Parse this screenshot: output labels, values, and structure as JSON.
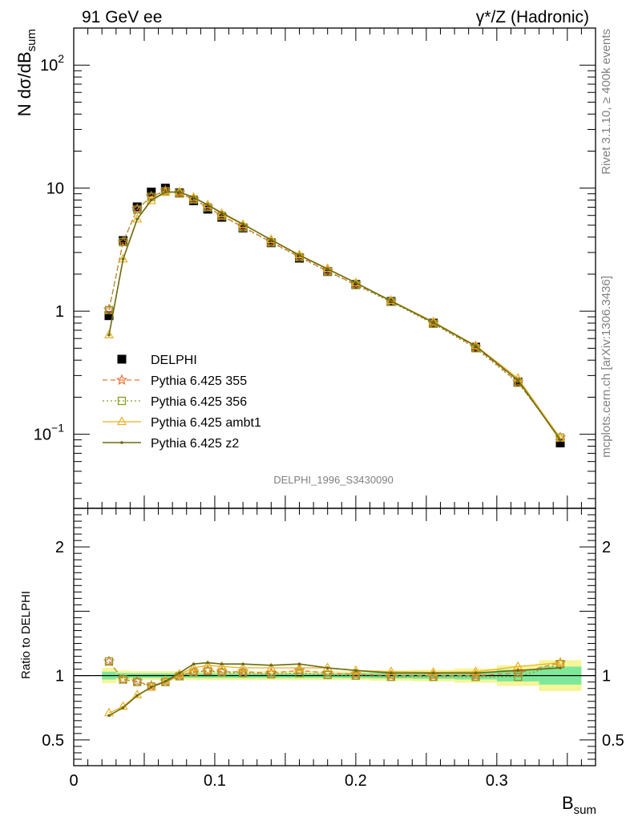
{
  "header": {
    "left": "91 GeV ee",
    "right": "γ*/Z (Hadronic)"
  },
  "side_labels": {
    "rivet": "Rivet 3.1.10, ≥ 400k events",
    "mcplots": "mcplots.cern.ch [arXiv:1306.3436]"
  },
  "watermark": "DELPHI_1996_S3430090",
  "colors": {
    "data": "#000000",
    "p355": "#e8743b",
    "p356": "#8a9a20",
    "ambt1": "#e8b020",
    "z2": "#6b6b10",
    "band_yellow": "#f5f59a",
    "band_green": "#7ee89a"
  },
  "chart_data": [
    {
      "type": "scatter",
      "panel": "main",
      "ylabel": "N dσ/dB",
      "ylabel_sub": "sum",
      "yscale": "log",
      "ylim": [
        0.025,
        200
      ],
      "xlim": [
        0,
        0.37
      ],
      "yticks": [
        {
          "value": 100,
          "base": "10",
          "exp": "2"
        },
        {
          "value": 10,
          "base": "10",
          "exp": ""
        },
        {
          "value": 1,
          "base": "1",
          "exp": ""
        },
        {
          "value": 0.1,
          "base": "10",
          "exp": "−1"
        }
      ],
      "legend_position": "middle-left",
      "series": [
        {
          "name": "DELPHI",
          "key": "data",
          "marker": "square",
          "x": [
            0.025,
            0.035,
            0.045,
            0.055,
            0.065,
            0.075,
            0.085,
            0.095,
            0.105,
            0.12,
            0.14,
            0.16,
            0.18,
            0.2,
            0.225,
            0.255,
            0.285,
            0.315,
            0.345
          ],
          "y": [
            0.92,
            3.75,
            7.05,
            9.3,
            10.0,
            9.15,
            7.9,
            6.75,
            5.8,
            4.75,
            3.6,
            2.7,
            2.1,
            1.65,
            1.2,
            0.8,
            0.51,
            0.265,
            0.085
          ]
        },
        {
          "name": "Pythia 6.425 355",
          "key": "p355",
          "marker": "star",
          "dash": "dashed",
          "x": [
            0.025,
            0.035,
            0.045,
            0.055,
            0.065,
            0.075,
            0.085,
            0.095,
            0.105,
            0.12,
            0.14,
            0.16,
            0.18,
            0.2,
            0.225,
            0.255,
            0.285,
            0.315,
            0.345
          ],
          "y": [
            1.03,
            3.65,
            6.75,
            8.55,
            9.5,
            9.1,
            8.1,
            7.0,
            5.95,
            4.85,
            3.65,
            2.78,
            2.12,
            1.65,
            1.21,
            0.8,
            0.51,
            0.265,
            0.094
          ]
        },
        {
          "name": "Pythia 6.425 356",
          "key": "p356",
          "marker": "open-square",
          "dash": "dotted",
          "x": [
            0.025,
            0.035,
            0.045,
            0.055,
            0.065,
            0.075,
            0.085,
            0.095,
            0.105,
            0.12,
            0.14,
            0.16,
            0.18,
            0.2,
            0.225,
            0.255,
            0.285,
            0.315,
            0.345
          ],
          "y": [
            1.02,
            3.65,
            6.7,
            8.5,
            9.45,
            9.05,
            8.1,
            7.0,
            5.95,
            4.8,
            3.62,
            2.75,
            2.1,
            1.63,
            1.19,
            0.79,
            0.5,
            0.262,
            0.094
          ]
        },
        {
          "name": "Pythia 6.425 ambt1",
          "key": "ambt1",
          "marker": "triangle",
          "dash": "solid",
          "x": [
            0.025,
            0.035,
            0.045,
            0.055,
            0.065,
            0.075,
            0.085,
            0.095,
            0.105,
            0.12,
            0.14,
            0.16,
            0.18,
            0.2,
            0.225,
            0.255,
            0.285,
            0.315,
            0.345
          ],
          "y": [
            0.64,
            2.65,
            5.6,
            7.9,
            9.2,
            9.3,
            8.4,
            7.3,
            6.2,
            5.05,
            3.82,
            2.87,
            2.22,
            1.7,
            1.22,
            0.82,
            0.525,
            0.285,
            0.093
          ]
        },
        {
          "name": "Pythia 6.425 z2",
          "key": "z2",
          "marker": "dot",
          "dash": "solid",
          "x": [
            0.025,
            0.035,
            0.045,
            0.055,
            0.065,
            0.075,
            0.085,
            0.095,
            0.105,
            0.12,
            0.14,
            0.16,
            0.18,
            0.2,
            0.225,
            0.255,
            0.285,
            0.315,
            0.345
          ],
          "y": [
            0.64,
            2.65,
            5.6,
            8.0,
            9.3,
            9.3,
            8.4,
            7.3,
            6.3,
            5.1,
            3.8,
            2.85,
            2.2,
            1.7,
            1.21,
            0.81,
            0.52,
            0.275,
            0.09
          ]
        }
      ]
    },
    {
      "type": "line",
      "panel": "ratio",
      "ylabel": "Ratio to DELPHI",
      "xlabel": "B",
      "xlabel_sub": "sum",
      "ylim": [
        0.3,
        2.3
      ],
      "xlim": [
        0,
        0.37
      ],
      "yticks": [
        0.5,
        1,
        2
      ],
      "ytick_labels": [
        "0.5",
        "1",
        "2"
      ],
      "xticks": [
        0,
        0.1,
        0.2,
        0.3
      ],
      "xtick_labels": [
        "0",
        "0.1",
        "0.2",
        "0.3"
      ],
      "bands": {
        "x_edges": [
          0.02,
          0.03,
          0.04,
          0.05,
          0.06,
          0.07,
          0.08,
          0.09,
          0.1,
          0.11,
          0.13,
          0.15,
          0.17,
          0.19,
          0.21,
          0.24,
          0.27,
          0.3,
          0.33,
          0.36
        ],
        "yellow_halfwidth": [
          0.06,
          0.04,
          0.035,
          0.035,
          0.035,
          0.035,
          0.035,
          0.035,
          0.035,
          0.035,
          0.035,
          0.035,
          0.035,
          0.035,
          0.04,
          0.045,
          0.055,
          0.08,
          0.12
        ],
        "green_halfwidth": [
          0.03,
          0.02,
          0.018,
          0.018,
          0.018,
          0.018,
          0.018,
          0.018,
          0.018,
          0.018,
          0.018,
          0.018,
          0.018,
          0.02,
          0.022,
          0.025,
          0.03,
          0.045,
          0.07
        ]
      },
      "series": [
        {
          "name": "Pythia 6.425 355",
          "key": "p355",
          "y": [
            1.11,
            0.97,
            0.955,
            0.92,
            0.955,
            1.0,
            1.03,
            1.04,
            1.03,
            1.03,
            1.02,
            1.04,
            1.02,
            1.01,
            1.0,
            1.0,
            1.0,
            1.02,
            1.1
          ]
        },
        {
          "name": "Pythia 6.425 356",
          "key": "p356",
          "y": [
            1.11,
            0.97,
            0.95,
            0.915,
            0.95,
            0.995,
            1.025,
            1.035,
            1.025,
            1.02,
            1.01,
            1.02,
            1.005,
            1.0,
            0.99,
            0.99,
            0.99,
            0.99,
            1.09
          ]
        },
        {
          "name": "Pythia 6.425 ambt1",
          "key": "ambt1",
          "y": [
            0.71,
            0.76,
            0.85,
            0.91,
            0.96,
            1.01,
            1.06,
            1.08,
            1.07,
            1.06,
            1.06,
            1.06,
            1.06,
            1.04,
            1.03,
            1.025,
            1.03,
            1.07,
            1.1
          ]
        },
        {
          "name": "Pythia 6.425 z2",
          "key": "z2",
          "y": [
            0.69,
            0.75,
            0.845,
            0.91,
            0.955,
            1.02,
            1.09,
            1.1,
            1.09,
            1.09,
            1.08,
            1.09,
            1.06,
            1.04,
            1.02,
            1.02,
            1.02,
            1.04,
            1.06
          ]
        }
      ]
    }
  ]
}
